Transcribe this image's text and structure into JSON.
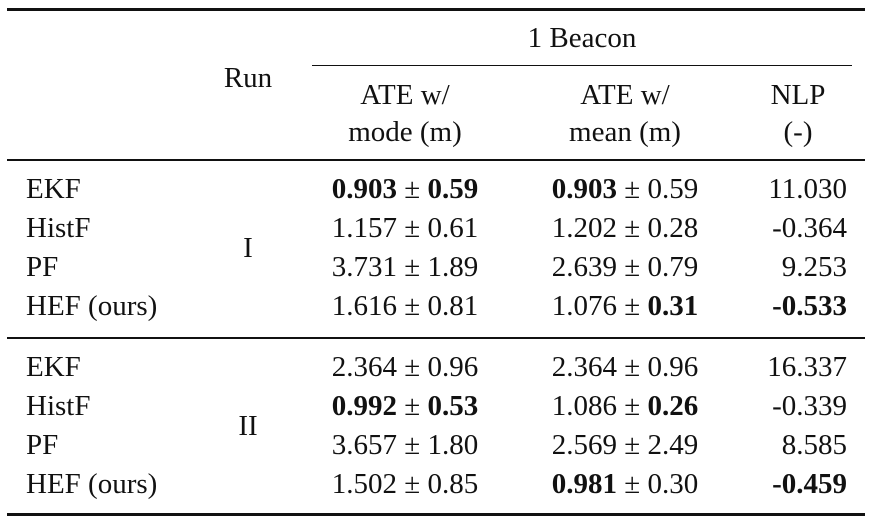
{
  "table": {
    "header": {
      "run_label": "Run",
      "group_label": "1 Beacon",
      "col1_line1": "ATE w/",
      "col1_line2": "mode (m)",
      "col2_line1": "ATE w/",
      "col2_line2": "mean (m)",
      "col3_line1": "NLP",
      "col3_line2": "(-)"
    },
    "pm": "±",
    "runs": [
      {
        "run": "I",
        "rows": [
          {
            "method": "EKF",
            "mode_val": "0.903",
            "mode_val_bold": true,
            "mode_std": "0.59",
            "mode_std_bold": true,
            "mean_val": "0.903",
            "mean_val_bold": true,
            "mean_std": "0.59",
            "mean_std_bold": false,
            "nlp": "11.030",
            "nlp_bold": false
          },
          {
            "method": "HistF",
            "mode_val": "1.157",
            "mode_val_bold": false,
            "mode_std": "0.61",
            "mode_std_bold": false,
            "mean_val": "1.202",
            "mean_val_bold": false,
            "mean_std": "0.28",
            "mean_std_bold": false,
            "nlp": "-0.364",
            "nlp_bold": false
          },
          {
            "method": "PF",
            "mode_val": "3.731",
            "mode_val_bold": false,
            "mode_std": "1.89",
            "mode_std_bold": false,
            "mean_val": "2.639",
            "mean_val_bold": false,
            "mean_std": "0.79",
            "mean_std_bold": false,
            "nlp": "9.253",
            "nlp_bold": false
          },
          {
            "method": "HEF (ours)",
            "mode_val": "1.616",
            "mode_val_bold": false,
            "mode_std": "0.81",
            "mode_std_bold": false,
            "mean_val": "1.076",
            "mean_val_bold": false,
            "mean_std": "0.31",
            "mean_std_bold": true,
            "nlp": "-0.533",
            "nlp_bold": true
          }
        ]
      },
      {
        "run": "II",
        "rows": [
          {
            "method": "EKF",
            "mode_val": "2.364",
            "mode_val_bold": false,
            "mode_std": "0.96",
            "mode_std_bold": false,
            "mean_val": "2.364",
            "mean_val_bold": false,
            "mean_std": "0.96",
            "mean_std_bold": false,
            "nlp": "16.337",
            "nlp_bold": false
          },
          {
            "method": "HistF",
            "mode_val": "0.992",
            "mode_val_bold": true,
            "mode_std": "0.53",
            "mode_std_bold": true,
            "mean_val": "1.086",
            "mean_val_bold": false,
            "mean_std": "0.26",
            "mean_std_bold": true,
            "nlp": "-0.339",
            "nlp_bold": false
          },
          {
            "method": "PF",
            "mode_val": "3.657",
            "mode_val_bold": false,
            "mode_std": "1.80",
            "mode_std_bold": false,
            "mean_val": "2.569",
            "mean_val_bold": false,
            "mean_std": "2.49",
            "mean_std_bold": false,
            "nlp": "8.585",
            "nlp_bold": false
          },
          {
            "method": "HEF (ours)",
            "mode_val": "1.502",
            "mode_val_bold": false,
            "mode_std": "0.85",
            "mode_std_bold": false,
            "mean_val": "0.981",
            "mean_val_bold": true,
            "mean_std": "0.30",
            "mean_std_bold": false,
            "nlp": "-0.459",
            "nlp_bold": true
          }
        ]
      }
    ]
  }
}
